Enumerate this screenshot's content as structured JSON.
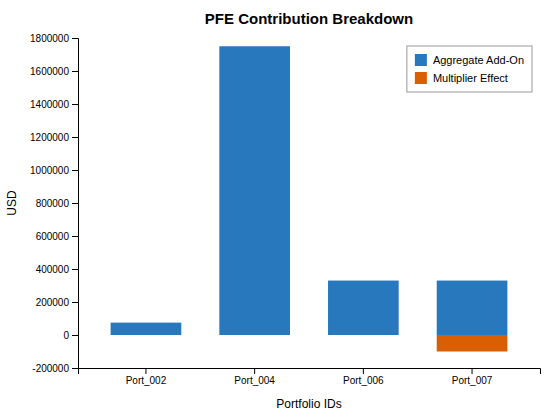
{
  "chart_data": {
    "type": "bar",
    "title": "PFE Contribution Breakdown",
    "xlabel": "Portfolio IDs",
    "ylabel": "USD",
    "categories": [
      "Port_002",
      "Port_004",
      "Port_006",
      "Port_007"
    ],
    "series": [
      {
        "name": "Aggregate Add-On",
        "color": "#2878be",
        "values": [
          75000,
          1750000,
          330000,
          330000
        ]
      },
      {
        "name": "Multiplier Effect",
        "color": "#d95f02",
        "values": [
          0,
          0,
          0,
          -100000
        ]
      }
    ],
    "stacked": false,
    "ylim": [
      -200000,
      1800000
    ],
    "yticks": [
      -200000,
      0,
      200000,
      400000,
      600000,
      800000,
      1000000,
      1200000,
      1400000,
      1600000,
      1800000
    ],
    "grid": false,
    "legend": "upper right"
  }
}
